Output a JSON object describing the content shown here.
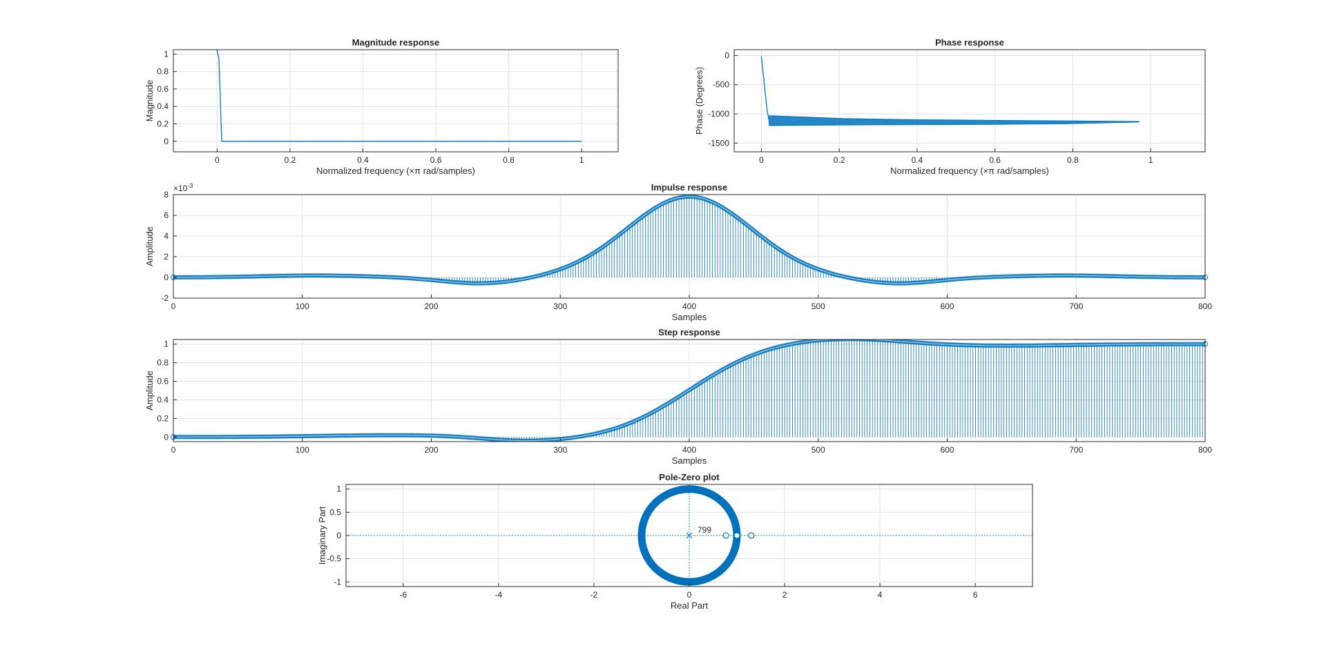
{
  "colors": {
    "series": "#0072BD",
    "grid": "#DFDFDF",
    "axis": "#262626",
    "background": "#FFFFFF"
  },
  "chart_data": [
    {
      "id": "magnitude",
      "type": "line",
      "title": "Magnitude response",
      "xlabel": "Normalized frequency (×π rad/samples)",
      "ylabel": "Magnitude",
      "xlim": [
        -0.12,
        1.1
      ],
      "ylim": [
        -0.12,
        1.05
      ],
      "xticks": [
        0,
        0.2,
        0.4,
        0.6,
        0.8,
        1
      ],
      "xtick_labels": [
        "0",
        "0.2",
        "0.4",
        "0.6",
        "0.8",
        "1"
      ],
      "yticks": [
        0,
        0.2,
        0.4,
        0.6,
        0.8,
        1
      ],
      "ytick_labels": [
        "0",
        "0.2",
        "0.4",
        "0.6",
        "0.8",
        "1"
      ],
      "grid": true,
      "series": [
        {
          "x": [
            0,
            0.002,
            0.005,
            0.008,
            0.011,
            0.013,
            0.02,
            0.1,
            0.5,
            1
          ],
          "y": [
            1.05,
            1.0,
            0.95,
            0.6,
            0.2,
            0.0,
            0.0,
            0.0,
            0.0,
            0.0
          ]
        }
      ]
    },
    {
      "id": "phase",
      "type": "line",
      "title": "Phase response",
      "xlabel": "Normalized frequency (×π rad/samples)",
      "ylabel": "Phase (Degrees)",
      "xlim": [
        -0.07,
        1.14
      ],
      "ylim": [
        -1650,
        100
      ],
      "xticks": [
        0,
        0.2,
        0.4,
        0.6,
        0.8,
        1
      ],
      "xtick_labels": [
        "0",
        "0.2",
        "0.4",
        "0.6",
        "0.8",
        "1"
      ],
      "yticks": [
        0,
        -500,
        -1000,
        -1500
      ],
      "ytick_labels": [
        "0",
        "-500",
        "-1000",
        "-1500"
      ],
      "grid": true,
      "series": [
        {
          "x": [
            0,
            0.005,
            0.01,
            0.015,
            0.02
          ],
          "y": [
            -20,
            -330,
            -650,
            -950,
            -1130
          ]
        }
      ],
      "band": {
        "x_start": 0.02,
        "x_end": 0.97,
        "upper": [
          -1030,
          -1080,
          -1100,
          -1110,
          -1120,
          -1130
        ],
        "lower": [
          -1200,
          -1190,
          -1185,
          -1180,
          -1170,
          -1140
        ]
      }
    },
    {
      "id": "impulse",
      "type": "stem",
      "title": "Impulse response",
      "xlabel": "Samples",
      "ylabel": "Amplitude",
      "exponent_label": "×10",
      "exponent_value": "-3",
      "xlim": [
        0,
        800
      ],
      "ylim": [
        -2,
        8
      ],
      "xticks": [
        0,
        100,
        200,
        300,
        400,
        500,
        600,
        700,
        800
      ],
      "xtick_labels": [
        "0",
        "100",
        "200",
        "300",
        "400",
        "500",
        "600",
        "700",
        "800"
      ],
      "yticks": [
        -2,
        0,
        2,
        4,
        6,
        8
      ],
      "ytick_labels": [
        "-2",
        "0",
        "2",
        "4",
        "6",
        "8"
      ],
      "grid": true,
      "n_samples": 800,
      "center": 400,
      "peak": 7.8
    },
    {
      "id": "step",
      "type": "stem",
      "title": "Step response",
      "xlabel": "Samples",
      "ylabel": "Amplitude",
      "xlim": [
        0,
        800
      ],
      "ylim": [
        -0.05,
        1.05
      ],
      "xticks": [
        0,
        100,
        200,
        300,
        400,
        500,
        600,
        700,
        800
      ],
      "xtick_labels": [
        "0",
        "100",
        "200",
        "300",
        "400",
        "500",
        "600",
        "700",
        "800"
      ],
      "yticks": [
        0,
        0.2,
        0.4,
        0.6,
        0.8,
        1
      ],
      "ytick_labels": [
        "0",
        "0.2",
        "0.4",
        "0.6",
        "0.8",
        "1"
      ],
      "grid": true,
      "n_samples": 800
    },
    {
      "id": "polezero",
      "type": "scatter",
      "title": "Pole-Zero plot",
      "xlabel": "Real Part",
      "ylabel": "Imaginary Part",
      "xlim": [
        -7.2,
        7.2
      ],
      "ylim": [
        -1.1,
        1.1
      ],
      "xticks": [
        -6,
        -4,
        -2,
        0,
        2,
        4,
        6
      ],
      "xtick_labels": [
        "-6",
        "-4",
        "-2",
        "0",
        "2",
        "4",
        "6"
      ],
      "yticks": [
        -1,
        -0.5,
        0,
        0.5,
        1
      ],
      "ytick_labels": [
        "-1",
        "-0.5",
        "0",
        "0.5",
        "1"
      ],
      "grid": true,
      "pole": {
        "x": 0,
        "y": 0,
        "multiplicity_label": "799"
      },
      "zeros_on_unit_circle": 798,
      "real_zeros": [
        0.77,
        1.0,
        1.3
      ]
    }
  ]
}
